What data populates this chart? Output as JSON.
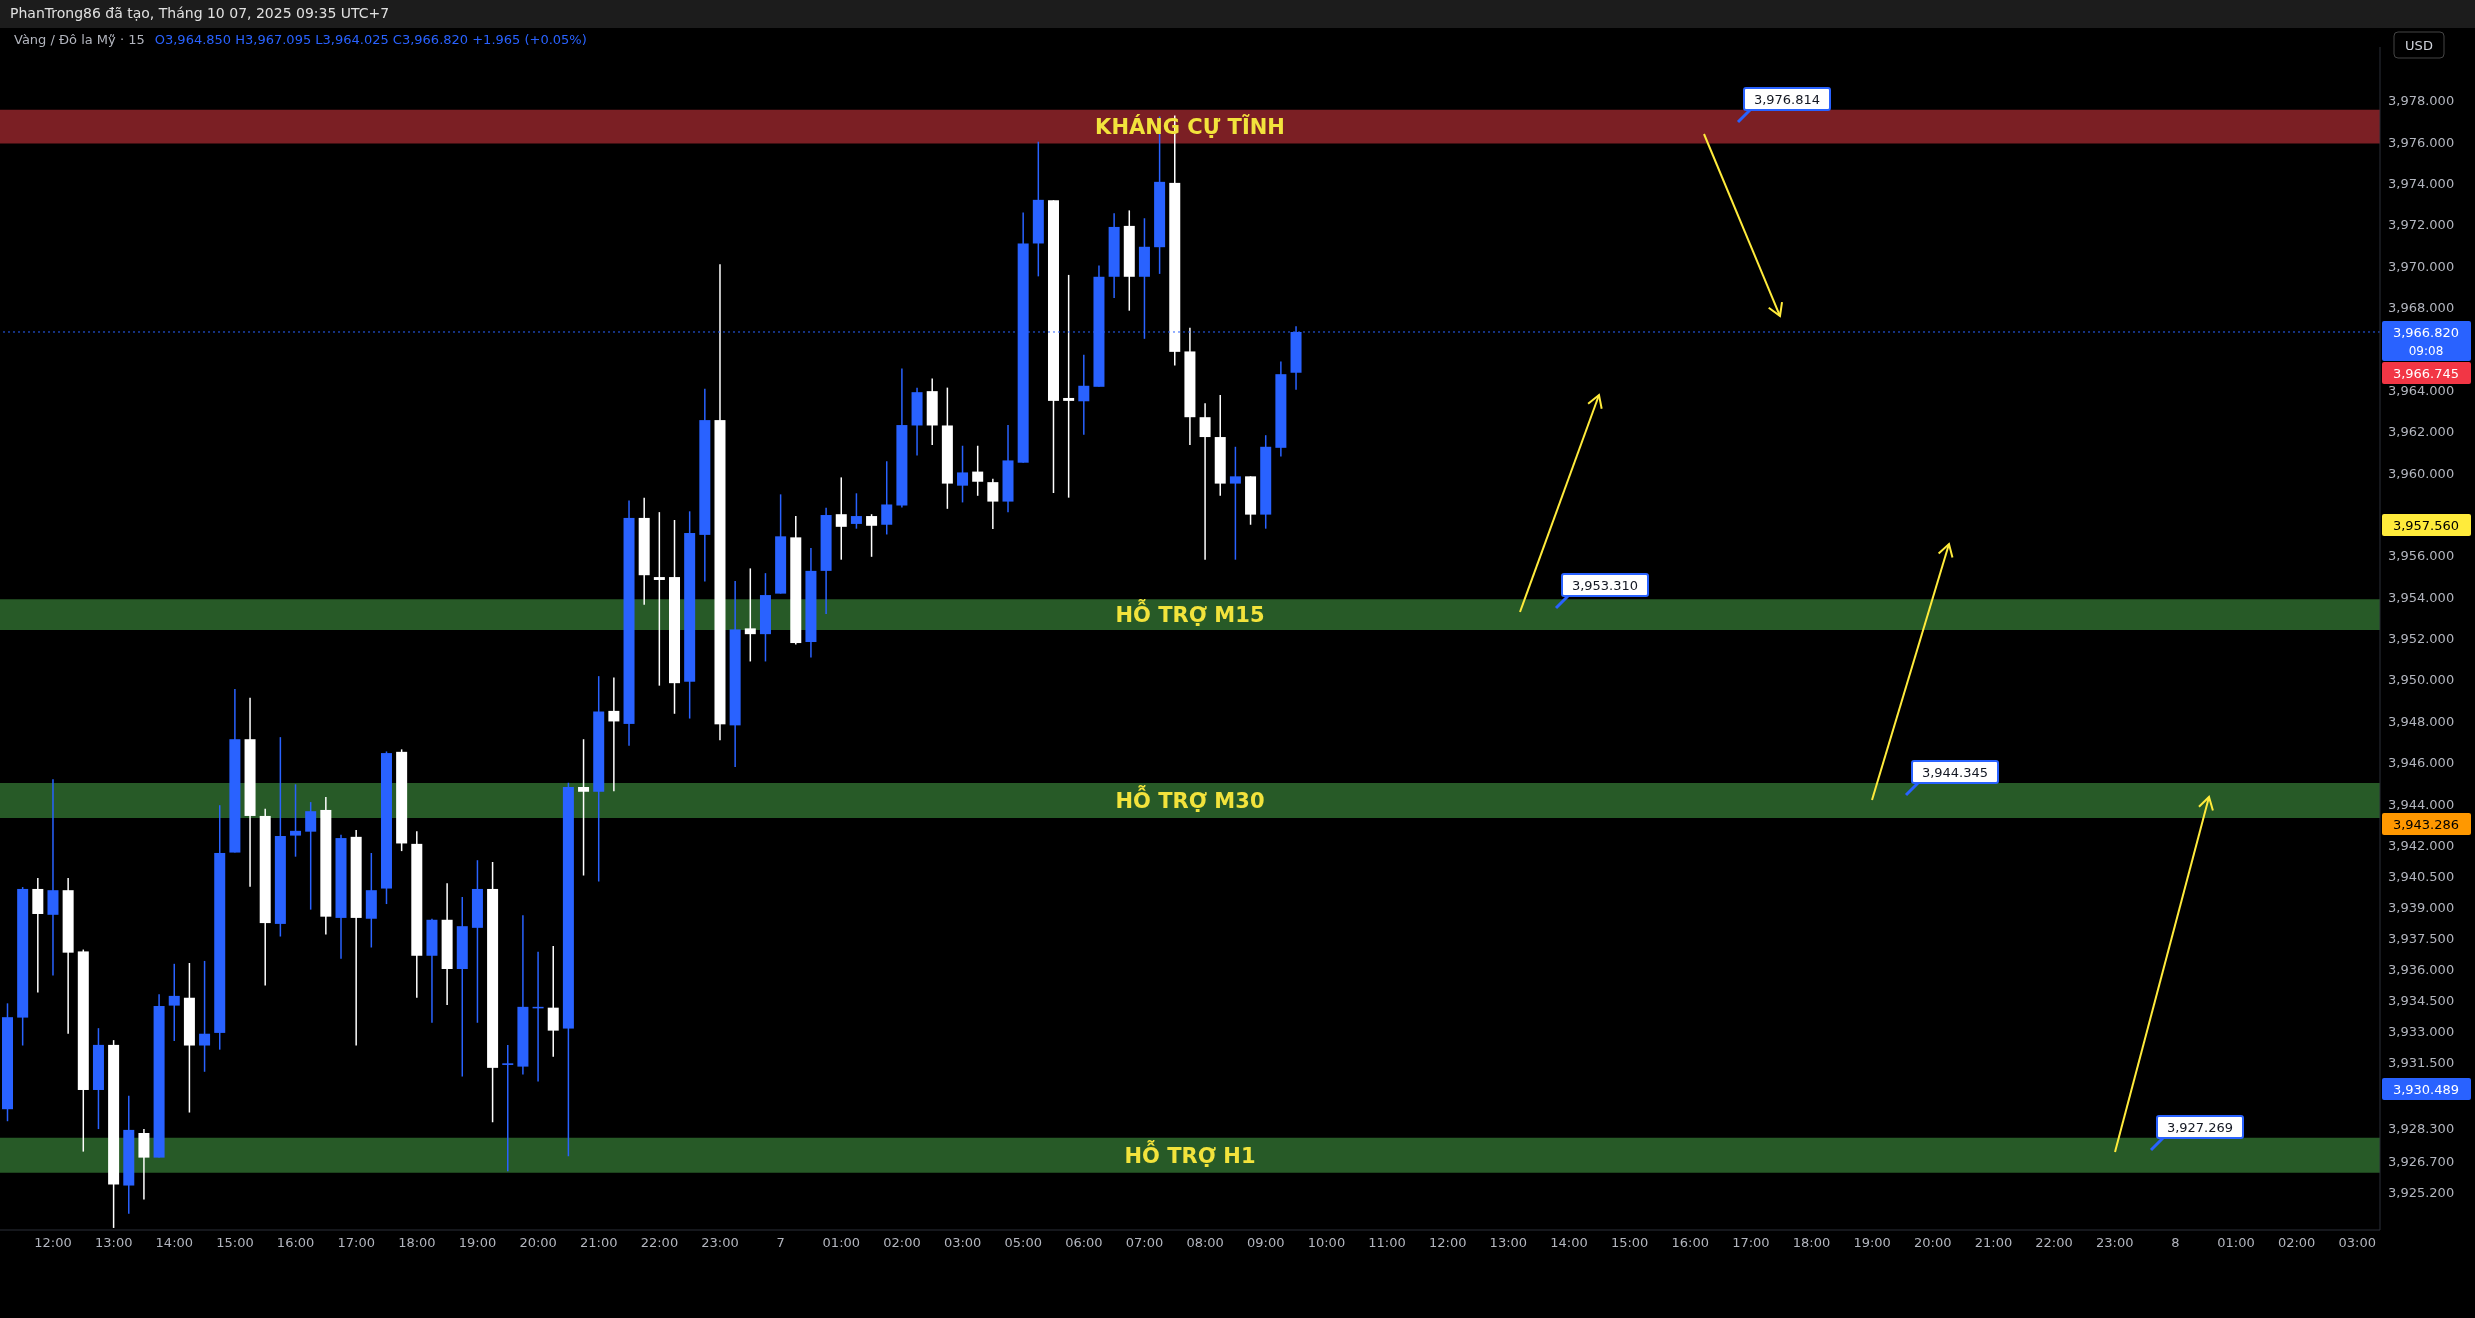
{
  "chart_data": {
    "type": "candlestick",
    "title": "Vàng / Đô la Mỹ · 15",
    "subtitle": "O3,964.850 H3,967.095 L3,964.025 C3,966.820 +1.965 (+0.05%)",
    "ylabel": "USD",
    "categories": [
      null,
      null,
      null,
      "12:00",
      null,
      null,
      null,
      "13:00",
      null,
      null,
      null,
      "14:00",
      null,
      null,
      null,
      "15:00",
      null,
      null,
      null,
      "16:00",
      null,
      null,
      null,
      "17:00",
      null,
      null,
      null,
      "18:00",
      null,
      null,
      null,
      "19:00",
      null,
      null,
      null,
      "20:00",
      null,
      null,
      null,
      "21:00",
      null,
      null,
      null,
      "22:00",
      null,
      null,
      null,
      "23:00",
      null,
      null,
      null,
      "7",
      null,
      null,
      null,
      "01:00",
      null,
      null,
      null,
      "02:00",
      null,
      null,
      null,
      "03:00",
      null,
      null,
      null,
      "05:00",
      null,
      null,
      null,
      "06:00",
      null,
      null,
      null,
      "07:00",
      null,
      null,
      null,
      "08:00",
      null,
      null,
      null,
      "09:00",
      null,
      null,
      null,
      "10:00",
      null,
      null,
      null,
      "11:00",
      null,
      null,
      null,
      "12:00",
      null,
      null,
      null,
      "13:00",
      null,
      null,
      null,
      "14:00",
      null,
      null,
      null,
      "15:00",
      null,
      null,
      null,
      "16:00",
      null,
      null,
      null,
      "17:00",
      null,
      null,
      null,
      "18:00",
      null,
      null,
      null,
      "19:00",
      null,
      null,
      null,
      "20:00",
      null,
      null,
      null,
      "21:00",
      null,
      null,
      null,
      "22:00",
      null,
      null,
      null,
      "23:00",
      null,
      null,
      null,
      "8",
      null,
      null,
      null,
      "01:00",
      null,
      null,
      null,
      "02:00",
      null,
      null,
      null,
      "03:00",
      null
    ],
    "ohlc": [
      [
        3929.24,
        3934.36,
        3928.66,
        3933.69
      ],
      [
        3933.67,
        3939.98,
        3932.32,
        3939.89
      ],
      [
        3939.89,
        3940.42,
        3934.88,
        3938.68
      ],
      [
        3938.64,
        3945.2,
        3935.7,
        3939.83
      ],
      [
        3939.83,
        3940.42,
        3932.89,
        3936.81
      ],
      [
        3936.87,
        3936.96,
        3927.19,
        3930.17
      ],
      [
        3930.17,
        3933.16,
        3928.28,
        3932.35
      ],
      [
        3932.35,
        3932.58,
        3923.5,
        3925.6
      ],
      [
        3925.55,
        3929.89,
        3924.19,
        3928.24
      ],
      [
        3928.09,
        3928.28,
        3924.88,
        3926.9
      ],
      [
        3926.9,
        3934.8,
        3926.9,
        3934.23
      ],
      [
        3934.25,
        3936.27,
        3932.54,
        3934.72
      ],
      [
        3934.63,
        3936.31,
        3929.08,
        3932.32
      ],
      [
        3932.32,
        3936.41,
        3931.05,
        3932.89
      ],
      [
        3932.93,
        3943.94,
        3932.12,
        3941.63
      ],
      [
        3941.65,
        3949.56,
        3941.65,
        3947.13
      ],
      [
        3947.13,
        3949.14,
        3940.0,
        3943.42
      ],
      [
        3943.42,
        3943.77,
        3935.22,
        3938.24
      ],
      [
        3938.2,
        3947.23,
        3937.59,
        3942.45
      ],
      [
        3942.47,
        3944.95,
        3941.45,
        3942.7
      ],
      [
        3942.66,
        3944.09,
        3938.89,
        3943.65
      ],
      [
        3943.71,
        3944.34,
        3937.69,
        3938.55
      ],
      [
        3938.49,
        3942.51,
        3936.52,
        3942.35
      ],
      [
        3942.41,
        3942.74,
        3932.32,
        3938.49
      ],
      [
        3938.45,
        3941.63,
        3937.06,
        3939.83
      ],
      [
        3939.91,
        3946.54,
        3939.16,
        3946.46
      ],
      [
        3946.52,
        3946.64,
        3941.72,
        3942.09
      ],
      [
        3942.07,
        3942.68,
        3934.63,
        3936.66
      ],
      [
        3936.66,
        3938.45,
        3933.42,
        3938.4
      ],
      [
        3938.4,
        3940.17,
        3934.28,
        3936.02
      ],
      [
        3936.02,
        3939.5,
        3930.82,
        3938.09
      ],
      [
        3938.01,
        3941.28,
        3933.42,
        3939.89
      ],
      [
        3939.89,
        3941.19,
        3928.61,
        3931.24
      ],
      [
        3931.38,
        3932.35,
        3926.24,
        3931.46
      ],
      [
        3931.3,
        3938.62,
        3930.92,
        3934.19
      ],
      [
        3934.13,
        3936.85,
        3930.58,
        3934.19
      ],
      [
        3934.15,
        3937.13,
        3931.78,
        3933.04
      ],
      [
        3933.14,
        3945.03,
        3926.96,
        3944.82
      ],
      [
        3944.82,
        3947.13,
        3940.54,
        3944.59
      ],
      [
        3944.59,
        3950.18,
        3940.25,
        3948.47
      ],
      [
        3948.5,
        3950.12,
        3944.62,
        3947.99
      ],
      [
        3947.87,
        3958.67,
        3946.82,
        3957.83
      ],
      [
        3957.83,
        3958.81,
        3953.63,
        3955.06
      ],
      [
        3954.97,
        3958.11,
        3949.72,
        3954.83
      ],
      [
        3954.97,
        3957.73,
        3948.36,
        3949.84
      ],
      [
        3949.91,
        3958.15,
        3948.13,
        3957.1
      ],
      [
        3957.01,
        3964.08,
        3954.76,
        3962.56
      ],
      [
        3962.56,
        3970.1,
        3947.08,
        3947.85
      ],
      [
        3947.8,
        3954.78,
        3945.79,
        3952.44
      ],
      [
        3952.49,
        3955.39,
        3950.89,
        3952.21
      ],
      [
        3952.21,
        3955.16,
        3950.89,
        3954.1
      ],
      [
        3954.17,
        3958.97,
        3954.17,
        3956.94
      ],
      [
        3956.89,
        3957.92,
        3951.71,
        3951.78
      ],
      [
        3951.83,
        3956.37,
        3951.08,
        3955.27
      ],
      [
        3955.27,
        3958.32,
        3953.19,
        3957.97
      ],
      [
        3958.01,
        3959.79,
        3955.81,
        3957.4
      ],
      [
        3957.54,
        3959.02,
        3957.31,
        3957.92
      ],
      [
        3957.92,
        3958.01,
        3955.95,
        3957.45
      ],
      [
        3957.5,
        3960.57,
        3957.03,
        3958.48
      ],
      [
        3958.43,
        3965.06,
        3958.34,
        3962.32
      ],
      [
        3962.3,
        3964.13,
        3960.85,
        3963.91
      ],
      [
        3963.96,
        3964.57,
        3961.36,
        3962.3
      ],
      [
        3962.3,
        3964.13,
        3958.27,
        3959.49
      ],
      [
        3959.39,
        3961.32,
        3958.58,
        3960.03
      ],
      [
        3960.07,
        3961.32,
        3958.9,
        3959.58
      ],
      [
        3959.56,
        3959.72,
        3957.29,
        3958.62
      ],
      [
        3958.62,
        3962.32,
        3958.11,
        3960.61
      ],
      [
        3960.5,
        3972.6,
        3960.5,
        3971.1
      ],
      [
        3971.1,
        3976.02,
        3969.51,
        3973.21
      ],
      [
        3973.19,
        3973.19,
        3959.04,
        3963.49
      ],
      [
        3963.63,
        3969.58,
        3958.81,
        3963.49
      ],
      [
        3963.47,
        3965.72,
        3961.85,
        3964.22
      ],
      [
        3964.17,
        3970.03,
        3964.17,
        3969.49
      ],
      [
        3969.49,
        3972.56,
        3968.46,
        3971.9
      ],
      [
        3971.95,
        3972.7,
        3967.85,
        3969.49
      ],
      [
        3969.49,
        3972.32,
        3966.49,
        3970.94
      ],
      [
        3970.92,
        3977.24,
        3969.63,
        3974.08
      ],
      [
        3974.03,
        3977.29,
        3965.2,
        3965.86
      ],
      [
        3965.88,
        3967.03,
        3961.36,
        3962.7
      ],
      [
        3962.7,
        3963.38,
        3955.81,
        3961.74
      ],
      [
        3961.74,
        3963.77,
        3958.9,
        3959.49
      ],
      [
        3959.49,
        3961.27,
        3955.81,
        3959.84
      ],
      [
        3959.84,
        3959.84,
        3957.5,
        3957.99
      ],
      [
        3957.99,
        3961.83,
        3957.31,
        3961.27
      ],
      [
        3961.22,
        3965.39,
        3960.8,
        3964.78
      ],
      [
        3964.85,
        3967.095,
        3964.025,
        3966.82
      ],
      null,
      null,
      null,
      null,
      null,
      null,
      null,
      null,
      null,
      null,
      null,
      null,
      null,
      null,
      null,
      null,
      null,
      null,
      null,
      null,
      null,
      null,
      null,
      null,
      null,
      null,
      null,
      null,
      null,
      null,
      null,
      null,
      null,
      null,
      null,
      null,
      null,
      null,
      null,
      null,
      null,
      null,
      null,
      null,
      null,
      null,
      null,
      null,
      null,
      null,
      null,
      null,
      null,
      null,
      null,
      null,
      null,
      null,
      null,
      null,
      null,
      null,
      null,
      null,
      null,
      null,
      null,
      null,
      null,
      null,
      null
    ],
    "colors": [
      "#2962ff",
      "#2962ff",
      "#ffffff",
      "#2962ff",
      "#ffffff",
      "#ffffff",
      "#2962ff",
      "#ffffff",
      "#2962ff",
      "#ffffff",
      "#2962ff",
      "#2962ff",
      "#ffffff",
      "#2962ff",
      "#2962ff",
      "#2962ff",
      "#ffffff",
      "#ffffff",
      "#2962ff",
      "#2962ff",
      "#2962ff",
      "#ffffff",
      "#2962ff",
      "#ffffff",
      "#2962ff",
      "#2962ff",
      "#ffffff",
      "#ffffff",
      "#2962ff",
      "#ffffff",
      "#2962ff",
      "#2962ff",
      "#ffffff",
      "#2962ff",
      "#2962ff",
      "#2962ff",
      "#ffffff",
      "#2962ff",
      "#ffffff",
      "#2962ff",
      "#ffffff",
      "#2962ff",
      "#ffffff",
      "#ffffff",
      "#ffffff",
      "#2962ff",
      "#2962ff",
      "#ffffff",
      "#2962ff",
      "#ffffff",
      "#2962ff",
      "#2962ff",
      "#ffffff",
      "#2962ff",
      "#2962ff",
      "#ffffff",
      "#2962ff",
      "#ffffff",
      "#2962ff",
      "#2962ff",
      "#2962ff",
      "#ffffff",
      "#ffffff",
      "#2962ff",
      "#ffffff",
      "#ffffff",
      "#2962ff",
      "#2962ff",
      "#2962ff",
      "#ffffff",
      "#ffffff",
      "#2962ff",
      "#2962ff",
      "#2962ff",
      "#ffffff",
      "#2962ff",
      "#2962ff",
      "#ffffff",
      "#ffffff",
      "#ffffff",
      "#ffffff",
      "#2962ff",
      "#ffffff",
      "#2962ff",
      "#2962ff",
      "#2962ff",
      null,
      null,
      null,
      null,
      null,
      null,
      null,
      null,
      null,
      null,
      null,
      null,
      null,
      null,
      null,
      null,
      null,
      null,
      null,
      null,
      null,
      null,
      null,
      null,
      null,
      null,
      null,
      null,
      null,
      null,
      null,
      null,
      null,
      null,
      null,
      null,
      null,
      null,
      null,
      null,
      null,
      null,
      null,
      null,
      null,
      null,
      null,
      null,
      null,
      null,
      null,
      null,
      null,
      null,
      null,
      null,
      null,
      null,
      null,
      null,
      null,
      null,
      null,
      null,
      null,
      null,
      null,
      null,
      null,
      null,
      null
    ],
    "ylim": [
      3923.4,
      3980.6
    ],
    "yticks": [
      {
        "value": 3978,
        "label": "3,978.000"
      },
      {
        "value": 3976,
        "label": "3,976.000"
      },
      {
        "value": 3974,
        "label": "3,974.000"
      },
      {
        "value": 3972,
        "label": "3,972.000"
      },
      {
        "value": 3970,
        "label": "3,970.000"
      },
      {
        "value": 3968,
        "label": "3,968.000"
      },
      {
        "value": 3964,
        "label": "3,964.000"
      },
      {
        "value": 3962,
        "label": "3,962.000"
      },
      {
        "value": 3960,
        "label": "3,960.000"
      },
      {
        "value": 3956,
        "label": "3,956.000"
      },
      {
        "value": 3954,
        "label": "3,954.000"
      },
      {
        "value": 3952,
        "label": "3,952.000"
      },
      {
        "value": 3950,
        "label": "3,950.000"
      },
      {
        "value": 3948,
        "label": "3,948.000"
      },
      {
        "value": 3946,
        "label": "3,946.000"
      },
      {
        "value": 3944,
        "label": "3,944.000"
      },
      {
        "value": 3942,
        "label": "3,942.000"
      },
      {
        "value": 3940.5,
        "label": "3,940.500"
      },
      {
        "value": 3939,
        "label": "3,939.000"
      },
      {
        "value": 3937.5,
        "label": "3,937.500"
      },
      {
        "value": 3936,
        "label": "3,936.000"
      },
      {
        "value": 3934.5,
        "label": "3,934.500"
      },
      {
        "value": 3933,
        "label": "3,933.000"
      },
      {
        "value": 3931.5,
        "label": "3,931.500"
      },
      {
        "value": 3928.3,
        "label": "3,928.300"
      },
      {
        "value": 3926.7,
        "label": "3,926.700"
      },
      {
        "value": 3925.2,
        "label": "3,925.200"
      }
    ],
    "bands": [
      {
        "axis": "y",
        "from": 3975.93,
        "to": 3977.57,
        "label": "KHÁNG CỰ TĨNH",
        "color": "#7b1f24"
      },
      {
        "axis": "y",
        "from": 3952.41,
        "to": 3953.9,
        "label": "HỖ TRỢ M15",
        "color": "#275a27"
      },
      {
        "axis": "y",
        "from": 3943.32,
        "to": 3945.01,
        "label": "HỖ TRỢ M30",
        "color": "#275a27"
      },
      {
        "axis": "y",
        "from": 3926.17,
        "to": 3927.86,
        "label": "HỖ TRỢ H1",
        "color": "#275a27"
      }
    ],
    "ref_lines": [
      {
        "axis": "y",
        "value": 3966.82,
        "label": "3,966.820",
        "color": "#2962ff",
        "line_style": "dotted"
      }
    ],
    "annotations": [
      "PhanTrong86 đã tạo, Tháng 10 07, 2025 09:35 UTC+7",
      "09:08",
      "3,966.745",
      "3,957.560",
      "3,943.286",
      "3,930.489",
      "3,976.814",
      "3,953.310",
      "3,944.345",
      "3,927.269"
    ]
  }
}
